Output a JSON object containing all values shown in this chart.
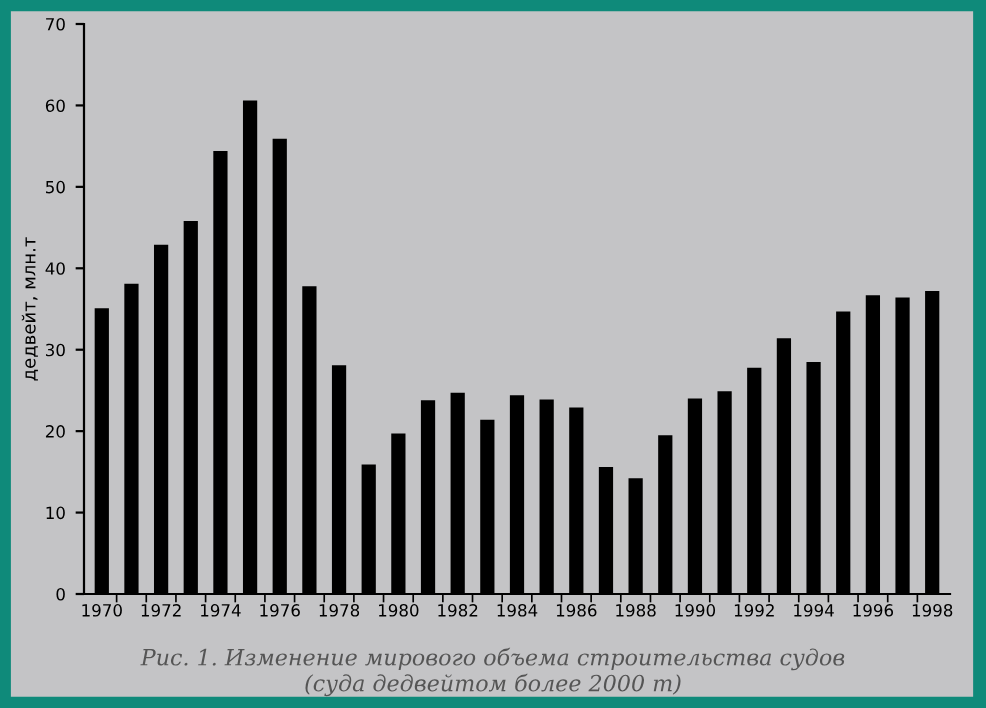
{
  "chart_data": {
    "type": "bar",
    "ylabel": "дедвейт, млн.т",
    "categories": [
      "1970",
      null,
      "1972",
      null,
      "1974",
      null,
      "1976",
      null,
      "1978",
      null,
      "1980",
      null,
      "1982",
      null,
      "1984",
      null,
      "1986",
      null,
      "1988",
      null,
      "1990",
      null,
      "1992",
      null,
      "1994",
      null,
      "1996",
      null,
      "1998"
    ],
    "values": [
      35.1,
      38.1,
      42.9,
      45.8,
      54.4,
      60.6,
      55.9,
      37.8,
      28.1,
      15.9,
      19.7,
      23.8,
      24.7,
      21.4,
      24.4,
      23.9,
      22.9,
      15.6,
      14.2,
      19.5,
      24.0,
      24.9,
      27.8,
      31.4,
      28.5,
      34.7,
      36.7,
      36.4,
      37.2
    ],
    "color": "#000000",
    "ylim": [
      0,
      70
    ],
    "yticks": [
      0,
      10,
      20,
      30,
      40,
      50,
      60,
      70
    ],
    "grid": false,
    "annotations": [
      "Рис. 1. Изменение мирового объема строительства судов\n(суда дедвейтом более 2000 т)"
    ]
  }
}
